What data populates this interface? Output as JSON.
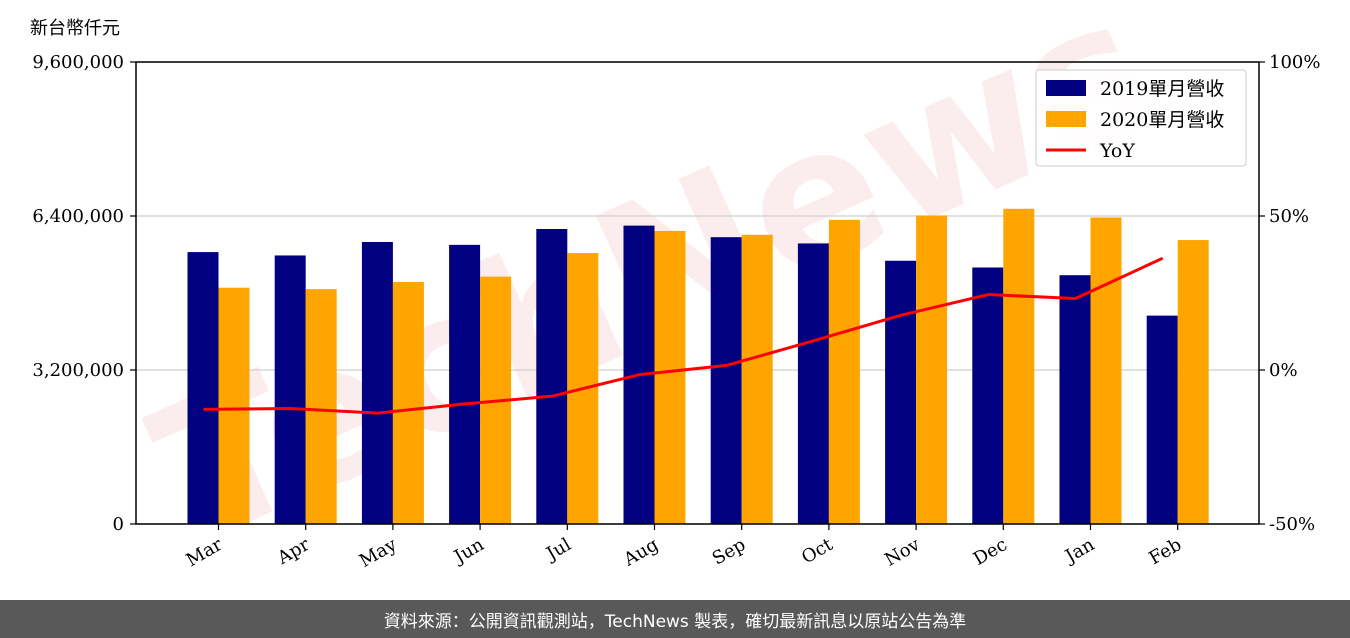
{
  "chart_data": {
    "type": "bar",
    "unit_label": "新台幣仟元",
    "watermark": "TechNews",
    "categories": [
      "Mar",
      "Apr",
      "May",
      "Jun",
      "Jul",
      "Aug",
      "Sep",
      "Oct",
      "Nov",
      "Dec",
      "Jan",
      "Feb"
    ],
    "series": [
      {
        "name": "2019單月營收",
        "type": "bar",
        "axis": "left",
        "color": "#000080",
        "values": [
          5650000,
          5580000,
          5860000,
          5800000,
          6130000,
          6200000,
          5960000,
          5830000,
          5470000,
          5330000,
          5170000,
          4330000
        ]
      },
      {
        "name": "2020單月營收",
        "type": "bar",
        "axis": "left",
        "color": "#ffa500",
        "values": [
          4910000,
          4880000,
          5030000,
          5140000,
          5630000,
          6090000,
          6010000,
          6320000,
          6410000,
          6550000,
          6370000,
          5900000
        ]
      },
      {
        "name": "YoY",
        "type": "line",
        "axis": "right",
        "color": "#ff0000",
        "values": [
          -12.8,
          -12.5,
          -14.0,
          -11.0,
          -8.5,
          -1.5,
          1.5,
          9.5,
          17.8,
          24.5,
          23.2,
          36.3
        ]
      }
    ],
    "y_left": {
      "ylim": [
        0,
        9600000
      ],
      "ticks": [
        "0",
        "3,200,000",
        "6,400,000",
        "9,600,000"
      ]
    },
    "y_right": {
      "ylim": [
        -50,
        100
      ],
      "ticks": [
        "-50%",
        "0%",
        "50%",
        "100%"
      ]
    },
    "grid": "horizontal",
    "legend": "top-right"
  },
  "footer": {
    "text": "資料來源：公開資訊觀測站，TechNews 製表，確切最新訊息以原站公告為準"
  }
}
